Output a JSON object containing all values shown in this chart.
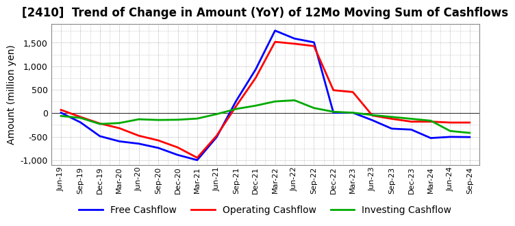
{
  "title": "[2410]  Trend of Change in Amount (YoY) of 12Mo Moving Sum of Cashflows",
  "ylabel": "Amount (million yen)",
  "xlabels": [
    "Jun-19",
    "Sep-19",
    "Dec-19",
    "Mar-20",
    "Jun-20",
    "Sep-20",
    "Dec-20",
    "Mar-21",
    "Jun-21",
    "Sep-21",
    "Dec-21",
    "Mar-22",
    "Jun-22",
    "Sep-22",
    "Dec-22",
    "Mar-23",
    "Jun-23",
    "Sep-23",
    "Dec-23",
    "Mar-24",
    "Jun-24",
    "Sep-24"
  ],
  "operating_cashflow": [
    70,
    -80,
    -220,
    -320,
    -480,
    -580,
    -730,
    -950,
    -480,
    150,
    750,
    1520,
    1480,
    1430,
    490,
    450,
    -50,
    -120,
    -180,
    -180,
    -200,
    -200
  ],
  "investing_cashflow": [
    -60,
    -100,
    -230,
    -210,
    -130,
    -145,
    -140,
    -115,
    -20,
    90,
    160,
    250,
    275,
    110,
    30,
    10,
    -40,
    -80,
    -120,
    -160,
    -380,
    -420
  ],
  "free_cashflow": [
    10,
    -195,
    -490,
    -600,
    -650,
    -740,
    -890,
    -1000,
    -510,
    260,
    930,
    1760,
    1590,
    1510,
    10,
    10,
    -150,
    -330,
    -350,
    -530,
    -505,
    -510
  ],
  "operating_color": "#ff0000",
  "investing_color": "#00aa00",
  "free_color": "#0000ff",
  "ylim": [
    -1100,
    1900
  ],
  "yticks": [
    -1000,
    -500,
    0,
    500,
    1000,
    1500
  ],
  "background_color": "#ffffff",
  "grid_color": "#999999",
  "title_fontsize": 12,
  "axis_fontsize": 10,
  "legend_fontsize": 10,
  "line_width": 2.0
}
